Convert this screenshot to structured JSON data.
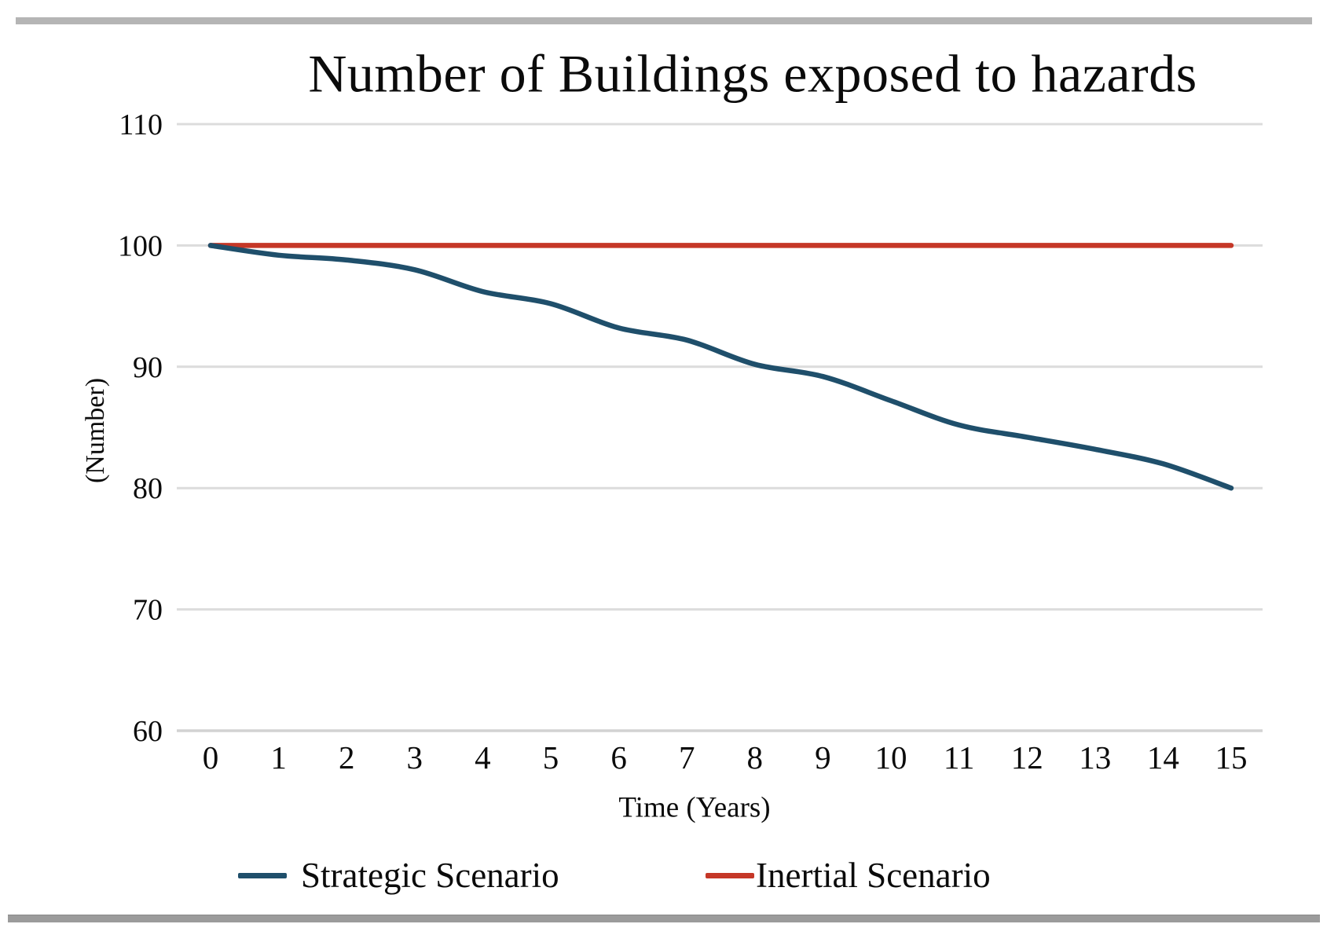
{
  "title": "Number of Buildings exposed to hazards",
  "colors": {
    "strategic": "#1f4f6b",
    "inertial": "#c53727",
    "gridline": "#dcdcdc",
    "axis_line": "#d2d2d2",
    "text": "#0b0b0b",
    "top_rule": "#b5b5b5",
    "bottom_rule": "#9b9b9b"
  },
  "chart_data": {
    "type": "line",
    "title": "Number of Buildings exposed to hazards",
    "xlabel": "Time (Years)",
    "ylabel": "(Number)",
    "x": [
      0,
      1,
      2,
      3,
      4,
      5,
      6,
      7,
      8,
      9,
      10,
      11,
      12,
      13,
      14,
      15
    ],
    "x_tick_labels": [
      "0",
      "1",
      "2",
      "3",
      "4",
      "5",
      "6",
      "7",
      "8",
      "9",
      "10",
      "11",
      "12",
      "13",
      "14",
      "15"
    ],
    "y_ticks": [
      110,
      100,
      90,
      80,
      70,
      60
    ],
    "ylim": [
      60,
      110
    ],
    "grid": "horizontal-only",
    "legend_position": "bottom",
    "series": [
      {
        "name": "Strategic Scenario",
        "color": "#1f4f6b",
        "values": [
          100,
          99.2,
          98.8,
          98,
          96.2,
          95.2,
          93.2,
          92.2,
          90.2,
          89.2,
          87.2,
          85.2,
          84.2,
          83.2,
          82,
          80
        ]
      },
      {
        "name": "Inertial Scenario",
        "color": "#c53727",
        "values": [
          100,
          100,
          100,
          100,
          100,
          100,
          100,
          100,
          100,
          100,
          100,
          100,
          100,
          100,
          100,
          100
        ]
      }
    ]
  }
}
